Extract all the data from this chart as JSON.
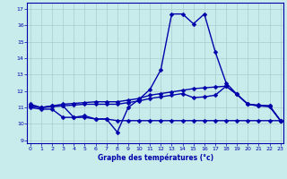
{
  "title": "Graphe des températures (°c)",
  "bg_color": "#c8ecec",
  "line_color": "#0000aa",
  "grid_color": "#aacccc",
  "ylim": [
    8.8,
    17.4
  ],
  "xlim": [
    -0.3,
    23.3
  ],
  "yticks": [
    9,
    10,
    11,
    12,
    13,
    14,
    15,
    16,
    17
  ],
  "xticks": [
    0,
    1,
    2,
    3,
    4,
    5,
    6,
    7,
    8,
    9,
    10,
    11,
    12,
    13,
    14,
    15,
    16,
    17,
    18,
    19,
    20,
    21,
    22,
    23
  ],
  "line1_x": [
    0,
    1,
    2,
    3,
    4,
    5,
    6,
    7,
    8,
    9,
    10,
    11,
    12,
    13,
    14,
    15,
    16,
    17,
    18,
    19,
    20,
    21,
    22,
    23
  ],
  "line1_y": [
    11.2,
    11.0,
    11.1,
    11.1,
    10.4,
    10.5,
    10.3,
    10.3,
    9.5,
    11.0,
    11.5,
    12.1,
    13.3,
    16.7,
    16.7,
    16.1,
    16.7,
    14.4,
    12.5,
    11.8,
    11.2,
    11.1,
    11.1,
    10.2
  ],
  "line2_x": [
    0,
    1,
    2,
    3,
    4,
    5,
    6,
    7,
    8,
    9,
    10,
    11,
    12,
    13,
    14,
    15,
    16,
    17,
    18,
    19,
    20,
    21,
    22,
    23
  ],
  "line2_y": [
    11.1,
    11.0,
    11.1,
    11.2,
    11.25,
    11.3,
    11.35,
    11.35,
    11.35,
    11.45,
    11.55,
    11.75,
    11.85,
    11.95,
    12.05,
    12.15,
    12.2,
    12.25,
    12.3,
    11.8,
    11.2,
    11.15,
    11.1,
    10.2
  ],
  "line3_x": [
    0,
    1,
    2,
    3,
    4,
    5,
    6,
    7,
    8,
    9,
    10,
    11,
    12,
    13,
    14,
    15,
    16,
    17,
    18,
    19,
    20,
    21,
    22,
    23
  ],
  "line3_y": [
    11.1,
    11.0,
    11.05,
    11.1,
    11.15,
    11.2,
    11.2,
    11.2,
    11.2,
    11.3,
    11.4,
    11.55,
    11.65,
    11.75,
    11.85,
    11.6,
    11.65,
    11.75,
    12.3,
    11.8,
    11.2,
    11.1,
    11.05,
    10.2
  ],
  "line4_x": [
    0,
    1,
    2,
    3,
    4,
    5,
    6,
    7,
    8,
    9,
    10,
    11,
    12,
    13,
    14,
    15,
    16,
    17,
    18,
    19,
    20,
    21,
    22,
    23
  ],
  "line4_y": [
    11.0,
    10.9,
    10.9,
    10.4,
    10.4,
    10.4,
    10.3,
    10.3,
    10.2,
    10.2,
    10.2,
    10.2,
    10.2,
    10.2,
    10.2,
    10.2,
    10.2,
    10.2,
    10.2,
    10.2,
    10.2,
    10.2,
    10.2,
    10.2
  ],
  "marker_size": 2.5,
  "line_width": 1.0,
  "tick_fontsize": 4.5,
  "xlabel_fontsize": 5.5
}
